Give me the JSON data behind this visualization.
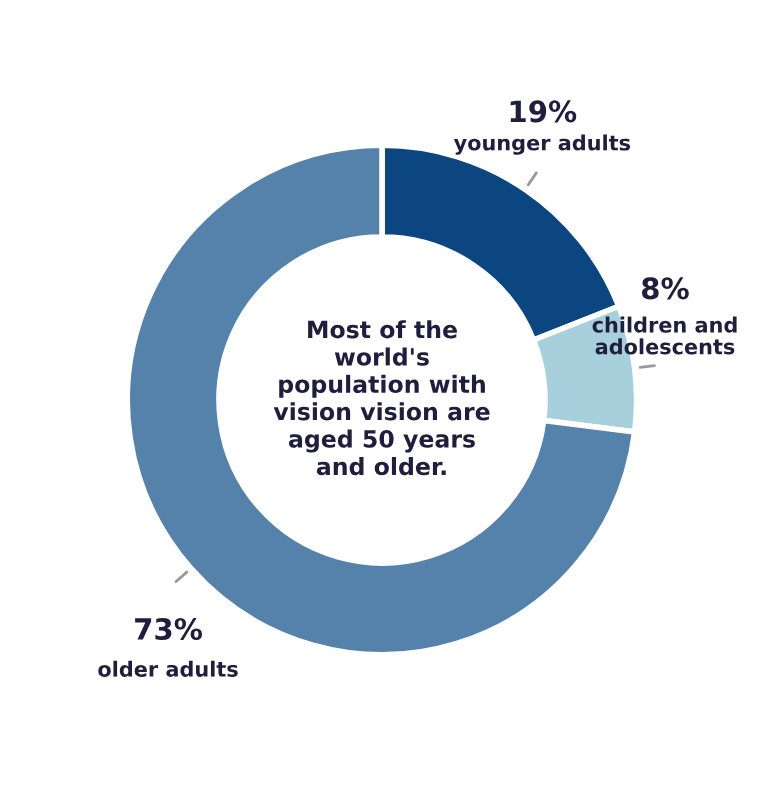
{
  "chart_data": {
    "type": "donut",
    "categories": [
      "younger adults",
      "children and adolescents",
      "older adults"
    ],
    "values": [
      19,
      8,
      73
    ],
    "colors": [
      "#0b4680",
      "#a8d0dc",
      "#5582ab"
    ],
    "value_labels": [
      "19%",
      "8%",
      "73%"
    ],
    "annotations": [
      "Most of the world's population with vision vision are aged 50 years and older."
    ],
    "legend": false
  }
}
